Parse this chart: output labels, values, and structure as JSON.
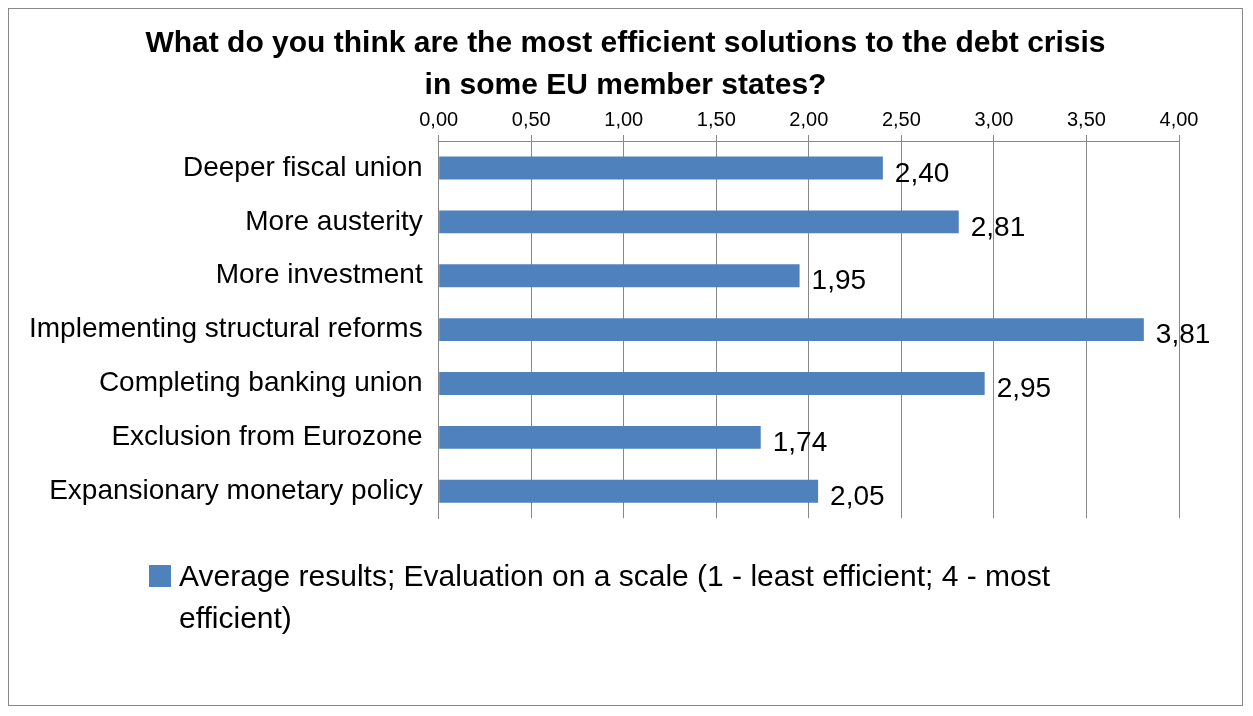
{
  "chart_data": {
    "type": "bar",
    "title": "What do you think are the most efficient solutions to the debt crisis in some EU member states?",
    "orientation": "horizontal",
    "categories": [
      "Deeper fiscal union",
      "More austerity",
      "More investment",
      "Implementing structural reforms",
      "Completing banking union",
      "Exclusion from Eurozone",
      "Expansionary monetary policy"
    ],
    "series": [
      {
        "name": "Average results; Evaluation on a scale (1 - least efficient; 4 - most efficient)",
        "color": "#4f81bd",
        "values": [
          2.4,
          2.81,
          1.95,
          3.81,
          2.95,
          1.74,
          2.05
        ],
        "value_labels": [
          "2,40",
          "2,81",
          "1,95",
          "3,81",
          "2,95",
          "1,74",
          "2,05"
        ]
      }
    ],
    "xlim": [
      0,
      4
    ],
    "xticks": [
      {
        "value": 0,
        "label": "0,00"
      },
      {
        "value": 0.5,
        "label": "0,50"
      },
      {
        "value": 1,
        "label": "1,00"
      },
      {
        "value": 1.5,
        "label": "1,50"
      },
      {
        "value": 2,
        "label": "2,00"
      },
      {
        "value": 2.5,
        "label": "2,50"
      },
      {
        "value": 3,
        "label": "3,00"
      },
      {
        "value": 3.5,
        "label": "3,50"
      },
      {
        "value": 4,
        "label": "4,00"
      }
    ],
    "grid": "x",
    "legend": "bottom"
  }
}
